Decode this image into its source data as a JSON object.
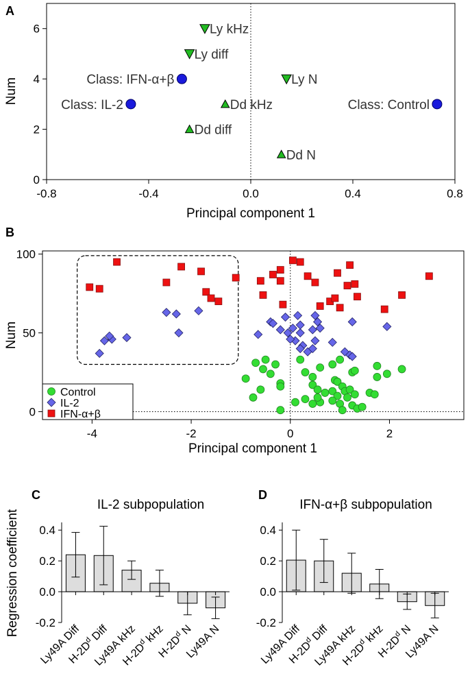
{
  "chart_data": [
    {
      "id": "A",
      "type": "scatter",
      "panel_label": "A",
      "xlabel": "Principal component 1",
      "ylabel": "Num",
      "xlim": [
        -0.8,
        0.8
      ],
      "ylim": [
        0,
        7
      ],
      "xticks": [
        -0.8,
        -0.4,
        0.0,
        0.4,
        0.8
      ],
      "xtick_labels": [
        "-0.8",
        "-0.4",
        "0.0",
        "0.4",
        "0.8"
      ],
      "yticks": [
        0,
        2,
        4,
        6
      ],
      "ytick_labels": [
        "0",
        "2",
        "4",
        "6"
      ],
      "zero_line": "vertical dotted at x=0",
      "points": [
        {
          "x": 0.73,
          "y": 3,
          "marker": "circle",
          "color": "#1a1adc",
          "label": "Class: Control",
          "label_side": "left"
        },
        {
          "x": -0.47,
          "y": 3,
          "marker": "circle",
          "color": "#1a1adc",
          "label": "Class: IL-2",
          "label_side": "left"
        },
        {
          "x": -0.27,
          "y": 4,
          "marker": "circle",
          "color": "#1a1adc",
          "label": "Class: IFN-α+β",
          "label_side": "left"
        },
        {
          "x": -0.18,
          "y": 6,
          "marker": "triangle-down",
          "color": "#22bb22",
          "label": "Ly kHz",
          "label_side": "right"
        },
        {
          "x": -0.24,
          "y": 5,
          "marker": "triangle-down",
          "color": "#22bb22",
          "label": "Ly diff",
          "label_side": "right"
        },
        {
          "x": 0.14,
          "y": 4,
          "marker": "triangle-down",
          "color": "#22bb22",
          "label": "Ly N",
          "label_side": "right"
        },
        {
          "x": -0.1,
          "y": 3,
          "marker": "triangle-up",
          "color": "#22bb22",
          "label": "Dd kHz",
          "label_side": "right"
        },
        {
          "x": -0.24,
          "y": 2,
          "marker": "triangle-up",
          "color": "#22bb22",
          "label": "Dd diff",
          "label_side": "right"
        },
        {
          "x": 0.12,
          "y": 1,
          "marker": "triangle-up",
          "color": "#22bb22",
          "label": "Dd N",
          "label_side": "right"
        }
      ]
    },
    {
      "id": "B",
      "type": "scatter",
      "panel_label": "B",
      "xlabel": "Principal component 1",
      "ylabel": "Num",
      "xlim": [
        -5,
        3.5
      ],
      "ylim": [
        -5,
        102
      ],
      "xticks": [
        -4,
        -2,
        0,
        2
      ],
      "xtick_labels": [
        "-4",
        "-2",
        "0",
        "2"
      ],
      "yticks": [
        0,
        50,
        100
      ],
      "ytick_labels": [
        "0",
        "50",
        "100"
      ],
      "zero_lines": "vertical dotted at x=0, horizontal dotted at y=0",
      "highlight_box": {
        "x": [
          -4.3,
          -1.05
        ],
        "y": [
          30,
          99
        ],
        "style": "dashed rounded"
      },
      "legend": {
        "placement": "bottom-left",
        "entries": [
          "Control",
          "IL-2",
          "IFN-α+β"
        ]
      },
      "series": [
        {
          "name": "Control",
          "marker": "circle",
          "color": "#33dd33",
          "points": [
            [
              -0.5,
              33
            ],
            [
              -0.7,
              31
            ],
            [
              -0.55,
              27
            ],
            [
              -0.3,
              30
            ],
            [
              -0.4,
              24
            ],
            [
              -0.2,
              18
            ],
            [
              -0.2,
              16
            ],
            [
              -0.75,
              9
            ],
            [
              -0.9,
              21
            ],
            [
              -0.2,
              1
            ],
            [
              -0.6,
              14
            ],
            [
              0.2,
              33
            ],
            [
              0.3,
              25
            ],
            [
              0.6,
              28
            ],
            [
              0.45,
              22
            ],
            [
              0.85,
              30
            ],
            [
              1.0,
              33
            ],
            [
              1.25,
              25
            ],
            [
              1.3,
              26
            ],
            [
              1.75,
              29
            ],
            [
              2.25,
              27
            ],
            [
              1.95,
              24
            ],
            [
              1.75,
              22
            ],
            [
              0.9,
              20
            ],
            [
              0.95,
              19
            ],
            [
              1.05,
              16
            ],
            [
              0.85,
              13
            ],
            [
              0.7,
              12
            ],
            [
              0.95,
              10
            ],
            [
              1.1,
              13
            ],
            [
              1.15,
              9
            ],
            [
              1.2,
              14
            ],
            [
              1.3,
              11
            ],
            [
              1.6,
              12
            ],
            [
              1.7,
              11
            ],
            [
              0.45,
              17
            ],
            [
              0.55,
              14
            ],
            [
              0.3,
              8
            ],
            [
              0.1,
              6
            ],
            [
              0.6,
              6
            ],
            [
              0.85,
              7
            ],
            [
              1.25,
              4
            ],
            [
              1.35,
              2
            ],
            [
              1.45,
              3
            ],
            [
              0.45,
              5
            ],
            [
              1.0,
              5
            ],
            [
              1.05,
              1
            ],
            [
              0.55,
              9
            ]
          ]
        },
        {
          "name": "IL-2",
          "marker": "diamond",
          "color": "#6666e8",
          "points": [
            [
              -3.85,
              37
            ],
            [
              -3.75,
              45
            ],
            [
              -3.6,
              46
            ],
            [
              -3.65,
              48
            ],
            [
              -3.3,
              47
            ],
            [
              -2.5,
              63
            ],
            [
              -2.3,
              62
            ],
            [
              -2.25,
              50
            ],
            [
              -1.85,
              64
            ],
            [
              -0.65,
              49
            ],
            [
              -0.4,
              57
            ],
            [
              -0.1,
              60
            ],
            [
              -0.35,
              56
            ],
            [
              -0.2,
              52
            ],
            [
              -0.05,
              50
            ],
            [
              0.2,
              55
            ],
            [
              0.1,
              45
            ],
            [
              0.25,
              42
            ],
            [
              0.2,
              40
            ],
            [
              0.35,
              38
            ],
            [
              0.45,
              40
            ],
            [
              0.5,
              45
            ],
            [
              0.45,
              52
            ],
            [
              0.55,
              57
            ],
            [
              0.5,
              61
            ],
            [
              1.25,
              57
            ],
            [
              1.1,
              38
            ],
            [
              1.2,
              36
            ],
            [
              1.25,
              35
            ],
            [
              1.95,
              54
            ],
            [
              0.15,
              61
            ],
            [
              0.05,
              53
            ],
            [
              0.6,
              53
            ],
            [
              0.85,
              44
            ],
            [
              0.0,
              46
            ],
            [
              0.2,
              50
            ]
          ]
        },
        {
          "name": "IFN-α+β",
          "marker": "square",
          "color": "#ee1111",
          "points": [
            [
              -4.05,
              79
            ],
            [
              -3.85,
              78
            ],
            [
              -3.5,
              95
            ],
            [
              -2.5,
              82
            ],
            [
              -2.2,
              92
            ],
            [
              -1.8,
              89
            ],
            [
              -1.7,
              76
            ],
            [
              -1.6,
              72
            ],
            [
              -1.45,
              70
            ],
            [
              -1.1,
              85
            ],
            [
              -0.6,
              83
            ],
            [
              -0.55,
              74
            ],
            [
              -0.35,
              87
            ],
            [
              -0.2,
              90
            ],
            [
              -0.2,
              83
            ],
            [
              -0.15,
              68
            ],
            [
              0.05,
              96
            ],
            [
              0.2,
              95
            ],
            [
              0.35,
              86
            ],
            [
              0.5,
              82
            ],
            [
              0.6,
              67
            ],
            [
              0.8,
              70
            ],
            [
              0.9,
              72
            ],
            [
              1.0,
              66
            ],
            [
              0.95,
              88
            ],
            [
              1.2,
              93
            ],
            [
              1.3,
              81
            ],
            [
              1.35,
              73
            ],
            [
              1.15,
              80
            ],
            [
              1.9,
              65
            ],
            [
              2.25,
              74
            ],
            [
              2.8,
              86
            ]
          ]
        }
      ]
    },
    {
      "id": "C",
      "type": "bar",
      "panel_label": "C",
      "title": "IL-2 subpopulation",
      "ylabel": "Regression coefficient",
      "ylim": [
        -0.2,
        0.45
      ],
      "yticks": [
        -0.2,
        0.0,
        0.2,
        0.4
      ],
      "ytick_labels": [
        "-0.2",
        "0.0",
        "0.2",
        "0.4"
      ],
      "categories": [
        "Ly49A Diff",
        "H-2D Diff",
        "Ly49A kHz",
        "H-2D kHz",
        "H-2D N",
        "Ly49A N"
      ],
      "category_superscripts": [
        "",
        "d",
        "",
        "d",
        "d",
        ""
      ],
      "values": [
        0.24,
        0.235,
        0.14,
        0.055,
        -0.075,
        -0.105
      ],
      "error_bars": [
        0.145,
        0.19,
        0.06,
        0.085,
        0.075,
        0.07
      ],
      "bar_color": "#dddddd"
    },
    {
      "id": "D",
      "type": "bar",
      "panel_label": "D",
      "title": "IFN-α+β subpopulation",
      "ylabel": "",
      "ylim": [
        -0.2,
        0.45
      ],
      "yticks": [
        -0.2,
        0.0,
        0.2,
        0.4
      ],
      "ytick_labels": [
        "-0.2",
        "0.0",
        "0.2",
        "0.4"
      ],
      "categories": [
        "Ly49A Diff",
        "H-2D Diff",
        "Ly49A kHz",
        "H-2D kHz",
        "H-2D N",
        "Ly49A N"
      ],
      "category_superscripts": [
        "",
        "d",
        "",
        "d",
        "d",
        ""
      ],
      "values": [
        0.205,
        0.2,
        0.12,
        0.05,
        -0.065,
        -0.09
      ],
      "error_bars": [
        0.195,
        0.14,
        0.13,
        0.095,
        0.05,
        0.08
      ],
      "bar_color": "#dddddd"
    }
  ]
}
